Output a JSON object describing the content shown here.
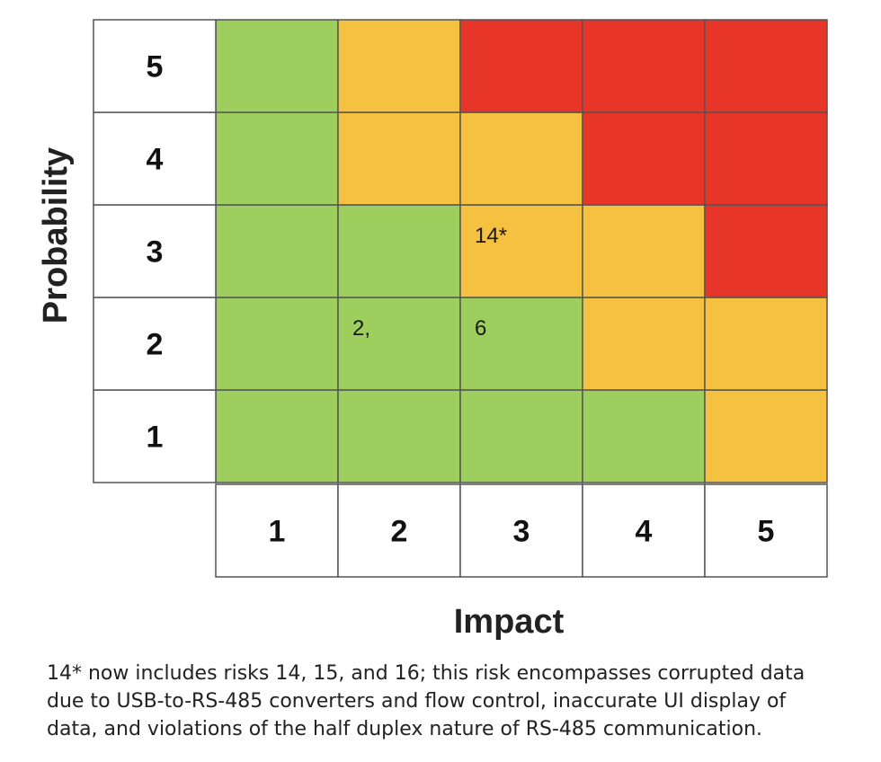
{
  "chart_data": {
    "type": "heatmap",
    "xlabel": "Impact",
    "ylabel": "Probability",
    "x_ticks": [
      "1",
      "2",
      "3",
      "4",
      "5"
    ],
    "y_ticks": [
      "1",
      "2",
      "3",
      "4",
      "5"
    ],
    "colors": {
      "green": "#9ecf5e",
      "yellow": "#f4c140",
      "red": "#e8352a",
      "border": "#555555"
    },
    "grid": [
      [
        "green",
        "green",
        "green",
        "green",
        "yellow"
      ],
      [
        "green",
        "green",
        "green",
        "yellow",
        "yellow"
      ],
      [
        "green",
        "green",
        "yellow",
        "yellow",
        "red"
      ],
      [
        "green",
        "yellow",
        "yellow",
        "red",
        "red"
      ],
      [
        "green",
        "yellow",
        "red",
        "red",
        "red"
      ]
    ],
    "annotations": [
      {
        "impact": 2,
        "probability": 2,
        "text": "2,"
      },
      {
        "impact": 3,
        "probability": 2,
        "text": "6"
      },
      {
        "impact": 3,
        "probability": 3,
        "text": "14*"
      }
    ]
  },
  "footnote": "14* now includes risks 14, 15, and 16; this risk encompasses corrupted data\ndue to USB-to-RS-485 converters and flow control, inaccurate UI display of\ndata, and violations of the half duplex nature of RS-485 communication."
}
